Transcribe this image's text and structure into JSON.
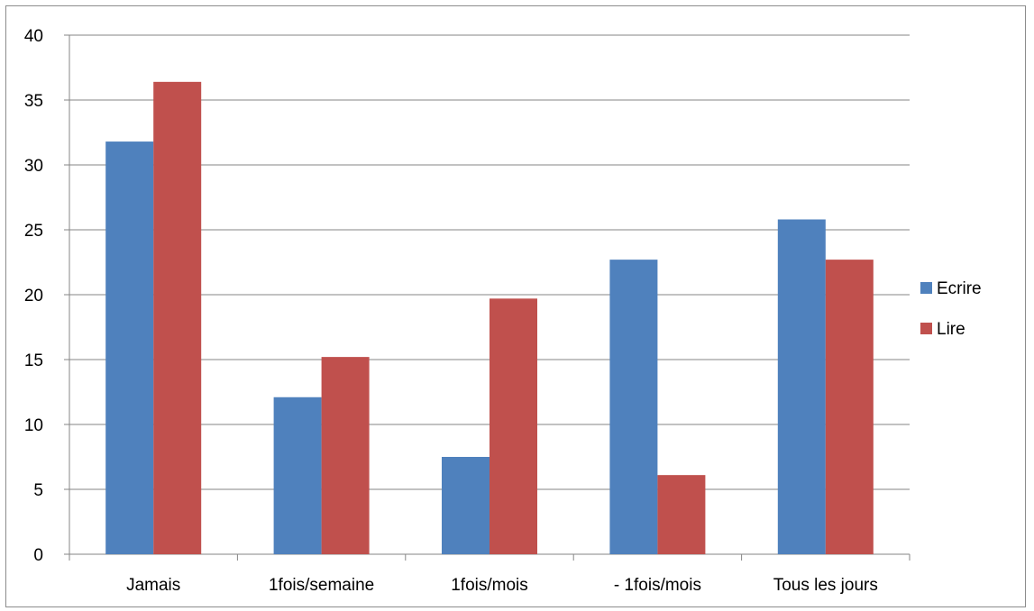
{
  "chart_data": {
    "type": "bar",
    "title": "",
    "xlabel": "",
    "ylabel": "",
    "categories": [
      "Jamais",
      "1fois/semaine",
      "1fois/mois",
      "- 1fois/mois",
      "Tous les jours"
    ],
    "series": [
      {
        "name": "Ecrire",
        "color": "#4f81bd",
        "values": [
          31.8,
          12.1,
          7.5,
          22.7,
          25.8
        ]
      },
      {
        "name": "Lire",
        "color": "#c0504d",
        "values": [
          36.4,
          15.2,
          19.7,
          6.1,
          22.7
        ]
      }
    ],
    "ylim": [
      0,
      40
    ],
    "yticks": [
      0,
      5,
      10,
      15,
      20,
      25,
      30,
      35,
      40
    ],
    "grid": true,
    "legend": "right"
  }
}
